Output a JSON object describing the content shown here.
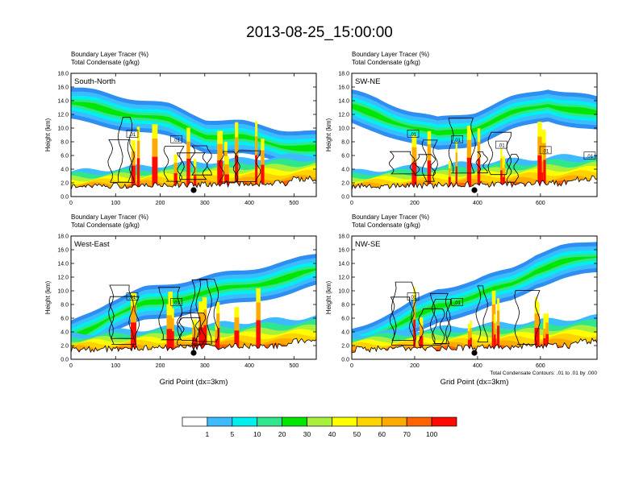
{
  "title": "2013-08-25_15:00:00",
  "chart_data": [
    {
      "type": "heatmap",
      "panel_label": "South-North",
      "header_line1": "Boundary Layer Tracer    (%)",
      "header_line2": "Total Condensate    (g/kg)",
      "ylabel": "Height (km)",
      "xlabel": "",
      "xlim": [
        0,
        550
      ],
      "ylim": [
        0,
        18
      ],
      "xticks": [
        "0",
        "100",
        "200",
        "300",
        "400",
        "500"
      ],
      "yticks": [
        "0.0",
        "2.0",
        "4.0",
        "6.0",
        "8.0",
        "10.0",
        "12.0",
        "14.0",
        "16.0",
        "18.0"
      ],
      "marker_x": 275,
      "contour_labels": [
        ".01",
        ".01"
      ]
    },
    {
      "type": "heatmap",
      "panel_label": "SW-NE",
      "header_line1": "Boundary Layer Tracer    (%)",
      "header_line2": "Total Condensate    (g/kg)",
      "ylabel": "Height (km)",
      "xlabel": "",
      "xlim": [
        0,
        780
      ],
      "ylim": [
        0,
        18
      ],
      "xticks": [
        "0",
        "200",
        "400",
        "600"
      ],
      "yticks": [
        "0.0",
        "2.0",
        "4.0",
        "6.0",
        "8.0",
        "10.0",
        "12.0",
        "14.0",
        "16.0",
        "18.0"
      ],
      "marker_x": 390,
      "contour_labels": [
        ".01",
        ".01",
        ".01",
        ".01",
        ".01"
      ]
    },
    {
      "type": "heatmap",
      "panel_label": "West-East",
      "header_line1": "Boundary Layer Tracer    (%)",
      "header_line2": "Total Condensate    (g/kg)",
      "ylabel": "Height (km)",
      "xlabel": "Grid Point (dx=3km)",
      "xlim": [
        0,
        550
      ],
      "ylim": [
        0,
        18
      ],
      "xticks": [
        "0",
        "100",
        "200",
        "300",
        "400",
        "500"
      ],
      "yticks": [
        "0.0",
        "2.0",
        "4.0",
        "6.0",
        "8.0",
        "10.0",
        "12.0",
        "14.0",
        "16.0",
        "18.0"
      ],
      "marker_x": 275,
      "contour_labels": [
        ".01",
        ".01"
      ]
    },
    {
      "type": "heatmap",
      "panel_label": "NW-SE",
      "header_line1": "Boundary Layer Tracer    (%)",
      "header_line2": "Total Condensate    (g/kg)",
      "ylabel": "Height (km)",
      "xlabel": "Grid Point (dx=3km)",
      "xlim": [
        0,
        780
      ],
      "ylim": [
        0,
        18
      ],
      "xticks": [
        "0",
        "200",
        "400",
        "600"
      ],
      "yticks": [
        "0.0",
        "2.0",
        "4.0",
        "6.0",
        "8.0",
        "10.0",
        "12.0",
        "14.0",
        "16.0",
        "18.0"
      ],
      "marker_x": 390,
      "contour_labels": [
        ".01",
        ".01"
      ],
      "footnote": "Total Condensate Contours: .01 to .01 by .000"
    }
  ],
  "colorbar": {
    "labels": [
      "1",
      "5",
      "10",
      "20",
      "30",
      "40",
      "50",
      "60",
      "70",
      "100"
    ],
    "colors": [
      "#ffffff",
      "#2e8ef2",
      "#3cbcff",
      "#00f0f0",
      "#2ee68c",
      "#00e600",
      "#a8f03c",
      "#ffff00",
      "#ffd200",
      "#ffaa00",
      "#ff6400",
      "#ff0a00"
    ]
  }
}
